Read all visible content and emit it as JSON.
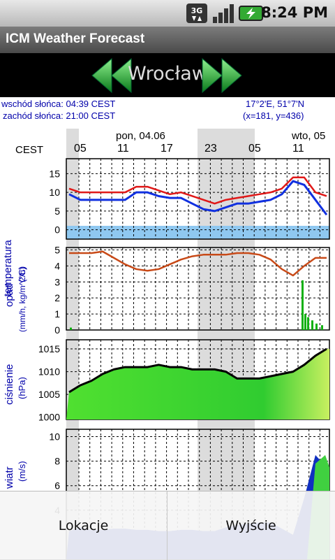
{
  "status_bar": {
    "time": "8:24 PM",
    "network": "3G",
    "icons": [
      "3g-data-icon",
      "signal-icon",
      "battery-charging-icon"
    ]
  },
  "app": {
    "title": "ICM Weather Forecast"
  },
  "location": {
    "name": "Wrocław",
    "prev_icon": "arrow-left-icon",
    "next_icon": "arrow-right-icon"
  },
  "meteogram": {
    "sunrise": "wschód słońca: 04:39 CEST",
    "sunset": "zachód słońca: 21:00 CEST",
    "coords": "17°2'E, 51°7'N",
    "grid": "(x=181, y=436)",
    "timezone": "CEST",
    "days": [
      "pon, 04.06",
      "wto, 05"
    ],
    "hours": [
      "05",
      "11",
      "17",
      "23",
      "05",
      "11"
    ],
    "temperature": {
      "label": "temperatura",
      "unit": "(°C)",
      "ticks": [
        "15",
        "10",
        "5",
        "0"
      ],
      "red": [
        11,
        10,
        10,
        10,
        10,
        10,
        11.5,
        11.5,
        10.5,
        9.5,
        10,
        9,
        8,
        7,
        8,
        8.5,
        9,
        9.5,
        10,
        11,
        14,
        14,
        10,
        9
      ],
      "blue": [
        9.5,
        8,
        8,
        8,
        8,
        8,
        10,
        10,
        9,
        8.5,
        8.5,
        7,
        5.5,
        5,
        6,
        7,
        7,
        7.5,
        8,
        9.5,
        13,
        12,
        8,
        4
      ]
    },
    "precipitation": {
      "label": "opad",
      "unit": "(mm/h, kg/m^2/h)",
      "ticks": [
        "5",
        "4",
        "3",
        "2",
        "1",
        "0"
      ],
      "line": [
        4.8,
        4.8,
        4.8,
        4.9,
        4.5,
        4.1,
        3.8,
        3.7,
        3.8,
        4.1,
        4.4,
        4.6,
        4.7,
        4.7,
        4.7,
        4.8,
        4.8,
        4.7,
        4.4,
        3.8,
        3.4,
        4.0,
        4.5,
        4.5
      ]
    },
    "pressure": {
      "label": "ciśnienie",
      "unit": "(hPa)",
      "ticks": [
        "1015",
        "1010",
        "1005",
        "1000"
      ],
      "values": [
        1005.5,
        1007,
        1008,
        1009.5,
        1010.5,
        1011,
        1011,
        1011,
        1011.5,
        1011,
        1011,
        1010.5,
        1010.5,
        1010.5,
        1010,
        1008.5,
        1008.5,
        1008.5,
        1009,
        1009.5,
        1010,
        1011.5,
        1013.5,
        1015
      ]
    },
    "wind": {
      "label": "wiatr",
      "unit": "(m/s)",
      "ticks": [
        "10",
        "8",
        "6",
        "4"
      ],
      "values": [
        2.3,
        2.6,
        2.4,
        2.4,
        2.5,
        2.5,
        2.4,
        2.4,
        2.3,
        2.3,
        2.4,
        2.4,
        2.3,
        2.3,
        2.6,
        2.8,
        2.9,
        3.0,
        3.0,
        2.5,
        2.0,
        5.0,
        8.5,
        7.5
      ]
    }
  },
  "menu": {
    "locations": "Lokacje",
    "exit": "Wyjście"
  }
}
